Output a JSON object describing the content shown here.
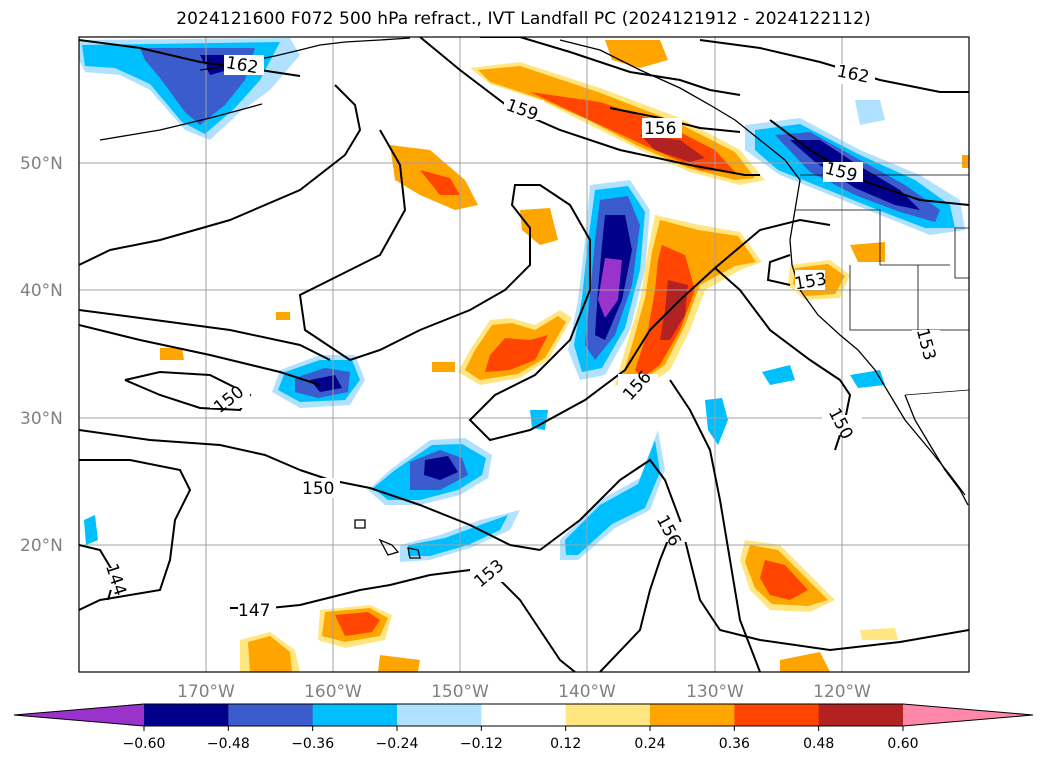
{
  "title": "2024121600 F072 500 hPa refract., IVT Landfall PC (2024121912 - 2024122112)",
  "map": {
    "lat_labels": [
      "50°N",
      "40°N",
      "30°N",
      "20°N"
    ],
    "lon_labels": [
      "170°W",
      "160°W",
      "150°W",
      "140°W",
      "130°W",
      "120°W"
    ],
    "contour_labels": [
      "162",
      "162",
      "159",
      "159",
      "156",
      "156",
      "156",
      "153",
      "153",
      "150",
      "150",
      "150",
      "147",
      "144",
      "153"
    ]
  },
  "colorbar": {
    "ticks": [
      "−0.60",
      "−0.48",
      "−0.36",
      "−0.24",
      "−0.12",
      "0.12",
      "0.24",
      "0.36",
      "0.48",
      "0.60"
    ],
    "colors": [
      "#9933cc",
      "#00008b",
      "#3a5ccc",
      "#00bfff",
      "#b0e2ff",
      "#ffffff",
      "#ffe680",
      "#ffa500",
      "#ff4500",
      "#b22222",
      "#ff88aa"
    ]
  }
}
